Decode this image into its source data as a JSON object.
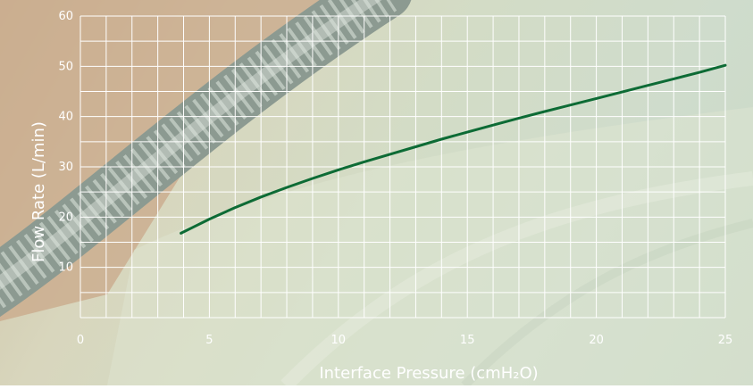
{
  "chart_data": {
    "type": "line",
    "xlabel": "Interface Pressure (cmH₂O)",
    "ylabel": "Flow Rate (L/min)",
    "xlim": [
      0,
      25
    ],
    "ylim": [
      0,
      60
    ],
    "x_ticks": [
      "0",
      "5",
      "10",
      "15",
      "20",
      "25"
    ],
    "y_ticks": [
      "10",
      "20",
      "30",
      "40",
      "50",
      "60"
    ],
    "grid": true,
    "series": [
      {
        "color": "#0d6b35",
        "x": [
          3.9,
          5,
          6,
          7,
          8,
          9,
          10,
          11,
          12,
          13,
          14,
          15,
          16,
          17,
          18,
          19,
          20,
          21,
          22,
          23,
          24,
          25
        ],
        "y": [
          16.8,
          19.6,
          21.9,
          24.0,
          25.9,
          27.7,
          29.4,
          31.0,
          32.5,
          34.0,
          35.5,
          36.9,
          38.3,
          39.7,
          41.0,
          42.3,
          43.6,
          44.9,
          46.2,
          47.5,
          48.8,
          50.2
        ]
      }
    ],
    "colors": {
      "grid": "#ffffff",
      "text": "#ffffff"
    }
  }
}
